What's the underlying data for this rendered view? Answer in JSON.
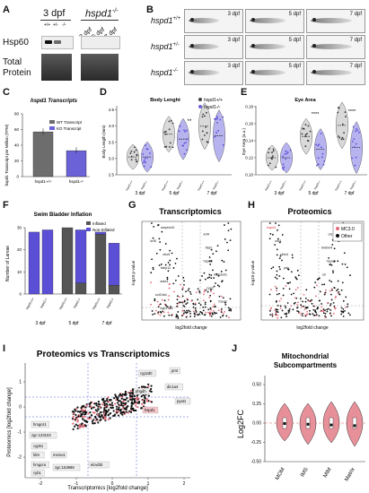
{
  "panels": [
    "A",
    "B",
    "C",
    "D",
    "E",
    "F",
    "G",
    "H",
    "I",
    "J"
  ],
  "A": {
    "col_3dpf": "3 dpf",
    "col_hspd1": "hspd1",
    "col_hspd1_sup": "-/-",
    "lanes": [
      "+/+",
      "+/-",
      "-/-",
      "3 dpf",
      "5 dpf",
      "7 dpf"
    ],
    "row1": "Hsp60",
    "row2": "Total",
    "row3": "Protein"
  },
  "B": {
    "rows": [
      {
        "genotype": "hspd1",
        "sup": "+/+",
        "labels": [
          "3 dpf",
          "5 dpf",
          "7 dpf"
        ]
      },
      {
        "genotype": "hspd1",
        "sup": "+/-",
        "labels": [
          "3 dpf",
          "5 dpf",
          "7 dpf"
        ]
      },
      {
        "genotype": "hspd1",
        "sup": "-/-",
        "labels": [
          "3 dpf",
          "5 dpf",
          "7 dpf"
        ]
      }
    ]
  },
  "C": {
    "title": "hspd1 Transcripts",
    "ylabel": "hspd1 Transcript per Million (TPM)",
    "legend": [
      "WT Transcript",
      "KO Transcript"
    ],
    "categories": [
      "hspd1+/+",
      "hspd1-/-"
    ],
    "yticks": [
      "0",
      "20",
      "40",
      "60",
      "80"
    ],
    "colors": {
      "wt": "#6d6d6d",
      "ko": "#6b62d8"
    }
  },
  "chart_data": [
    {
      "type": "bar",
      "title": "hspd1 Transcripts",
      "ylabel": "hspd1 Transcript per Million (TPM)",
      "categories": [
        "hspd1+/+",
        "hspd1-/-"
      ],
      "values": [
        57,
        33
      ],
      "ylim": [
        0,
        80
      ]
    },
    {
      "type": "scatter",
      "title": "Body Lenght",
      "ylabel": "Body Length (mm)",
      "legend": [
        "hspd1+/+",
        "hspd1-/-"
      ],
      "groups": [
        "3 dpf",
        "5 dpf",
        "7 dpf"
      ],
      "yticks": [
        "2.5",
        "3.0",
        "3.5",
        "4.0",
        "4.5"
      ],
      "ylim": [
        2.5,
        4.6
      ],
      "series": [
        {
          "name": "hspd1+/+",
          "medians": [
            3.05,
            3.75,
            4.0
          ]
        },
        {
          "name": "hspd1-/-",
          "medians": [
            3.05,
            3.6,
            3.7
          ]
        }
      ],
      "significance": [
        {
          "group": "5 dpf",
          "label": "**"
        }
      ]
    },
    {
      "type": "scatter",
      "title": "Eye Area",
      "ylabel": "Eye Area (a.u.)",
      "groups": [
        "3 dpf",
        "5 dpf",
        "7 dpf"
      ],
      "yticks": [
        "0.10",
        "0.12",
        "0.14",
        "0.16",
        "0.18"
      ],
      "ylim": [
        0.1,
        0.18
      ],
      "series": [
        {
          "name": "hspd1+/+",
          "medians": [
            0.12,
            0.145,
            0.158
          ]
        },
        {
          "name": "hspd1-/-",
          "medians": [
            0.12,
            0.13,
            0.132
          ]
        }
      ],
      "significance": [
        {
          "group": "5 dpf",
          "label": "****"
        },
        {
          "group": "7 dpf",
          "label": "****"
        }
      ]
    },
    {
      "type": "bar",
      "title": "Swim Bladder Inflation",
      "ylabel": "Number of Larvae",
      "categories": [
        "hspd1+/+ 3dpf",
        "hspd1-/- 3dpf",
        "hspd1+/+ 5dpf",
        "hspd1-/- 5dpf",
        "hspd1+/+ 7dpf",
        "hspd1-/- 7dpf"
      ],
      "series": [
        {
          "name": "Inflated",
          "values": [
            0,
            0,
            30,
            5,
            27,
            4
          ]
        },
        {
          "name": "Non-Inflated",
          "values": [
            28,
            29,
            0,
            24,
            1,
            19
          ]
        }
      ],
      "ylim": [
        0,
        30
      ]
    }
  ],
  "D": {
    "title": "Body Lenght",
    "ylabel": "Body Length (mm)",
    "legend": [
      "hspd1+/+",
      "hspd1-/-"
    ],
    "groups": [
      "3 dpf",
      "5 dpf",
      "7 dpf"
    ],
    "yticks": [
      "2.5",
      "3.0",
      "3.5",
      "4.0",
      "4.5"
    ],
    "sig": "**"
  },
  "E": {
    "title": "Eye Area",
    "ylabel": "Eye Area (a.u.)",
    "groups": [
      "3 dpf",
      "5 dpf",
      "7 dpf"
    ],
    "yticks": [
      "0.10",
      "0.12",
      "0.14",
      "0.16",
      "0.18"
    ],
    "sig1": "****",
    "sig2": "****"
  },
  "F": {
    "title": "Swim Bladder Inflation",
    "ylabel": "Number of Larvae",
    "legend": [
      "Inflated",
      "Non-Inflated"
    ],
    "groups": [
      "3 dpf",
      "5 dpf",
      "7 dpf"
    ],
    "yticks": [
      "0",
      "10",
      "20",
      "30"
    ],
    "colors": {
      "inflated": "#555555",
      "non_inflated": "#5b4fd6"
    }
  },
  "G": {
    "title": "Transcriptomics",
    "xlabel": "log2fold change",
    "ylabel": "-log10 p-value",
    "genes": [
      "serpinb1l",
      "krt4",
      "krt5",
      "tfa2l",
      "cbx5",
      "hspd1",
      "fabp11",
      "marcksl1",
      "acta1",
      "cyp2",
      "col10a1",
      "fosab",
      "cyp17a2"
    ]
  },
  "H": {
    "title": "Proteomics",
    "xlabel": "log2fold change",
    "ylabel": "-log10 p-value",
    "legend": [
      "MC3.0",
      "Other"
    ],
    "genes": [
      "hspd1",
      "cts",
      "clic1",
      "tmbim4",
      "cbln4",
      "hspa9",
      "pdc",
      "c9"
    ]
  },
  "I": {
    "title": "Proteomics vs Transcriptomics",
    "xlabel": "Transcriptomics [log2fold change]",
    "ylabel": "Proteomics [log2fold change]",
    "xticks": [
      "-2",
      "-1",
      "0",
      "1",
      "2"
    ],
    "yticks": [
      "-2",
      "-1",
      "0",
      "1",
      "2"
    ],
    "labels": [
      "cyp2d0",
      "pmt",
      "dic1a4",
      "pyat1",
      "phgdh",
      "hmgcs1",
      "zgc:123103",
      "cyp51",
      "fdrn",
      "msmo1",
      "hmgcra",
      "zgc:153988",
      "elovl2b",
      "cyb1",
      "hspd1"
    ]
  },
  "J": {
    "title": "Mitochondrial",
    "title2": "Subcompartments",
    "ylabel": "Log2FC",
    "categories": [
      "MOM",
      "IMS",
      "MIM",
      "Matrix"
    ],
    "yticks": [
      "0.50",
      "0.25",
      "0.00",
      "-0.25",
      "-0.50"
    ],
    "colors": {
      "violin": "#e8909a"
    }
  }
}
